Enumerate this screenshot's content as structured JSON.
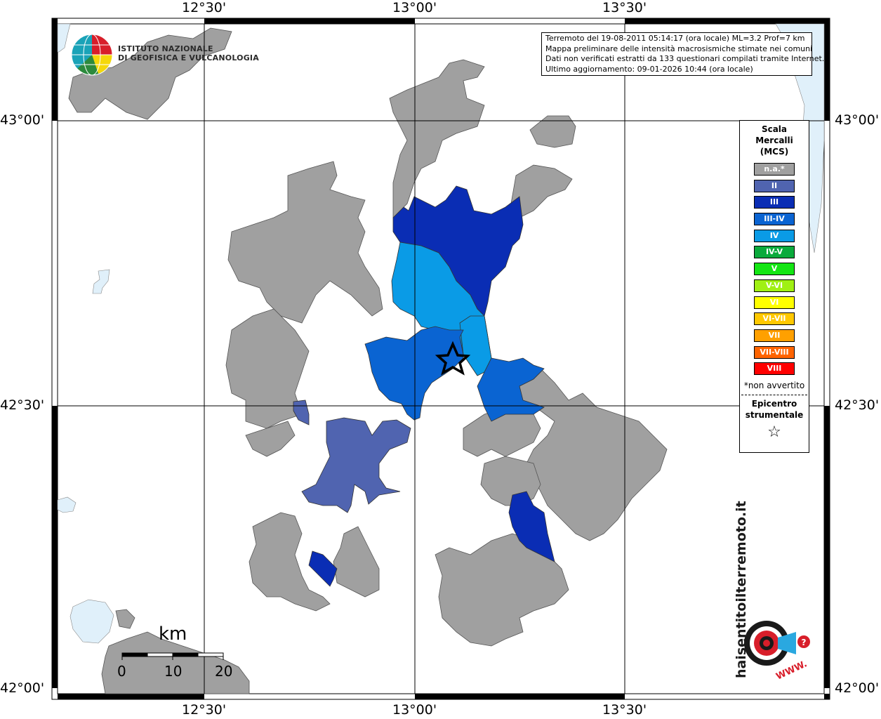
{
  "coordinates": {
    "lon_top": [
      "12°30'",
      "13°00'",
      "13°30'"
    ],
    "lon_bottom": [
      "12°30'",
      "13°00'",
      "13°30'"
    ],
    "lat_left": [
      "43°00'",
      "42°30'",
      "42°00'"
    ],
    "lat_right": [
      "43°00'",
      "42°30'",
      "42°00'"
    ]
  },
  "logo": {
    "ingv_line1": "ISTITUTO NAZIONALE",
    "ingv_line2": "DI GEOFISICA E VULCANOLOGIA",
    "hsit_text": "haisentitoilterremoto.it",
    "hsit_www": "WWW.",
    "hsit_q": "?"
  },
  "info": {
    "line1": "Terremoto del 19-08-2011 05:14:17 (ora locale) ML=3.2 Prof=7 km",
    "line2": "Mappa preliminare delle intensità macrosismiche stimate nei comuni",
    "line3": "Dati non verificati estratti da 133 questionari compilati tramite Internet.",
    "line4": "Ultimo aggiornamento: 09-01-2026 10:44 (ora locale)"
  },
  "legend": {
    "title_line1": "Scala",
    "title_line2": "Mercalli",
    "title_line3": "(MCS)",
    "items": [
      {
        "label": "n.a.*",
        "color": "#a0a0a0"
      },
      {
        "label": "II",
        "color": "#5064b0"
      },
      {
        "label": "III",
        "color": "#0a2db4"
      },
      {
        "label": "III-IV",
        "color": "#0a64d2"
      },
      {
        "label": "IV",
        "color": "#0a9be6"
      },
      {
        "label": "IV-V",
        "color": "#0aaa3c"
      },
      {
        "label": "V",
        "color": "#14e614"
      },
      {
        "label": "V-VI",
        "color": "#a0f014"
      },
      {
        "label": "VI",
        "color": "#ffff00"
      },
      {
        "label": "VI-VII",
        "color": "#ffc800"
      },
      {
        "label": "VII",
        "color": "#ffa000"
      },
      {
        "label": "VII-VIII",
        "color": "#ff6400"
      },
      {
        "label": "VIII",
        "color": "#ff0000"
      }
    ],
    "note": "*non avvertito",
    "epicentro_line1": "Epicentro",
    "epicentro_line2": "strumentale",
    "star": "☆"
  },
  "scale_bar": {
    "unit": "km",
    "ticks": [
      "0",
      "10",
      "20"
    ]
  },
  "colors": {
    "na": "#a0a0a0",
    "ii": "#5064b0",
    "iii": "#0a2db4",
    "iii_iv": "#0a64d2",
    "iv": "#0a9be6",
    "water": "#e0f0fa"
  }
}
